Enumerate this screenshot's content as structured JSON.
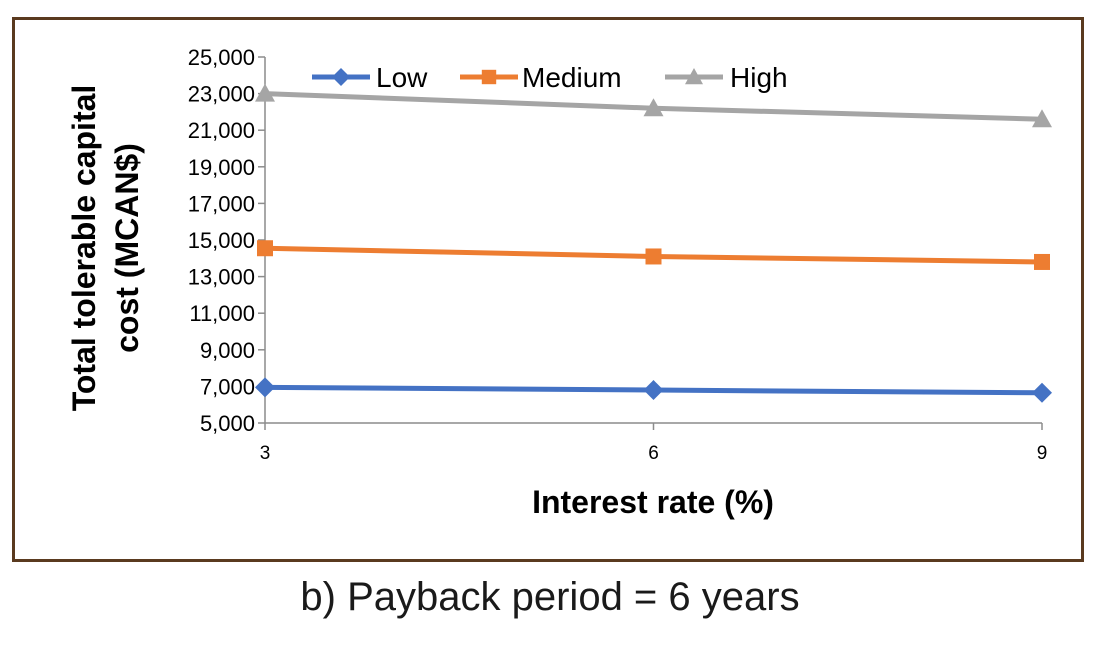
{
  "caption": "b) Payback period = 6 years",
  "chart_data": {
    "type": "line",
    "title": "",
    "xlabel": "Interest rate (%)",
    "ylabel": "Total tolerable capital cost (MCAN$)",
    "ylabel_lines": [
      "Total tolerable capital",
      "cost (MCAN$)"
    ],
    "x": [
      3,
      6,
      9
    ],
    "x_tick_labels": [
      "3",
      "6",
      "9"
    ],
    "ylim": [
      5000,
      25000
    ],
    "y_ticks": [
      5000,
      7000,
      9000,
      11000,
      13000,
      15000,
      17000,
      19000,
      21000,
      23000,
      25000
    ],
    "y_tick_labels": [
      "5,000",
      "7,000",
      "9,000",
      "11,000",
      "13,000",
      "15,000",
      "17,000",
      "19,000",
      "21,000",
      "23,000",
      "25,000"
    ],
    "grid": false,
    "legend_position": "top",
    "series": [
      {
        "name": "Low",
        "color": "#4472c4",
        "marker": "diamond",
        "values": [
          6950,
          6800,
          6650
        ]
      },
      {
        "name": "Medium",
        "color": "#ed7d31",
        "marker": "square",
        "values": [
          14550,
          14100,
          13800
        ]
      },
      {
        "name": "High",
        "color": "#a5a5a5",
        "marker": "triangle",
        "values": [
          23000,
          22200,
          21600
        ]
      }
    ]
  }
}
